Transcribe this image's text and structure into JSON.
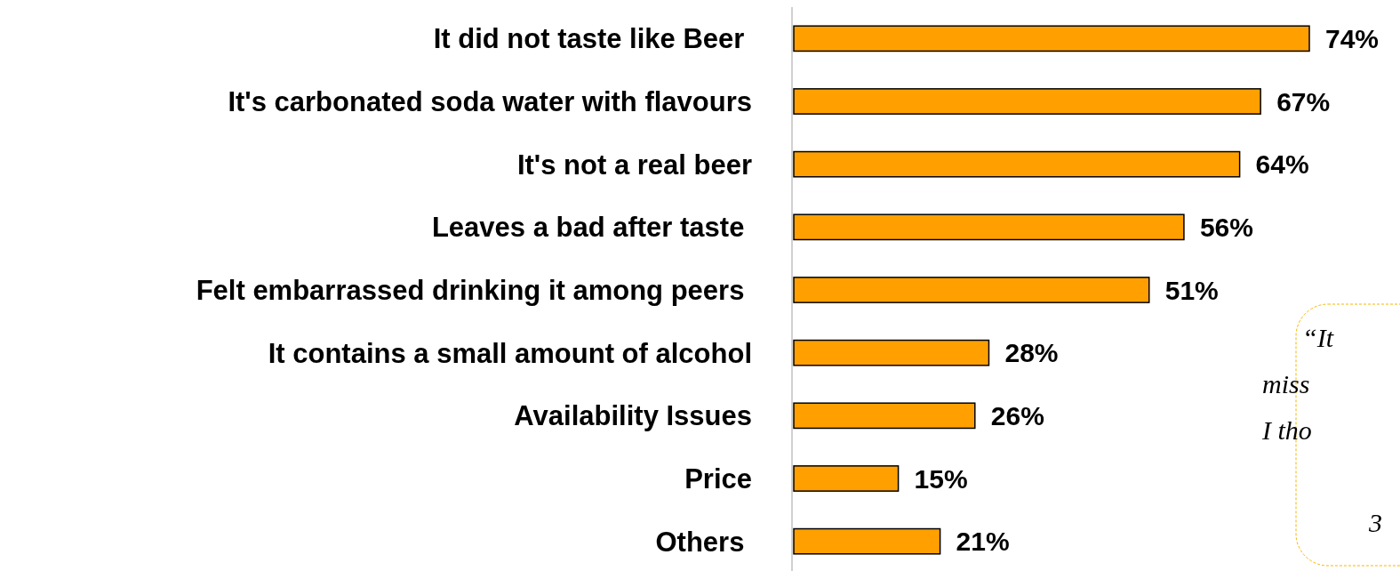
{
  "chart_data": {
    "type": "bar",
    "orientation": "horizontal",
    "categories": [
      "It did not taste like Beer ",
      "It's carbonated soda water with flavours",
      "It's not a real beer",
      "Leaves a bad after taste ",
      "Felt embarrassed drinking it among peers ",
      "It contains a small amount of alcohol",
      "Availability Issues",
      "Price",
      "Others "
    ],
    "values": [
      74,
      67,
      64,
      56,
      51,
      28,
      26,
      15,
      21
    ],
    "value_labels": [
      "74%",
      "67%",
      "64%",
      "56%",
      "51%",
      "28%",
      "26%",
      "15%",
      "21%"
    ],
    "color": "#ffa000",
    "tick_labels": "y",
    "annotations": [
      "“It",
      "miss",
      "I tho",
      "3"
    ]
  }
}
